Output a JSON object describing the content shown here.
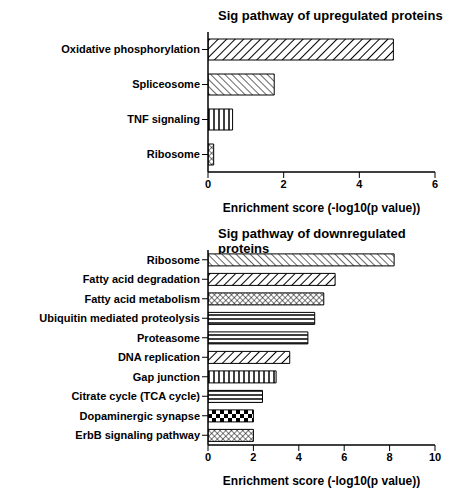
{
  "chart_data": [
    {
      "type": "bar",
      "orientation": "horizontal",
      "title": "Sig pathway of upregulated proteins",
      "x_label": "Enrichment score (-log10(p value))",
      "categories": [
        "Oxidative phosphorylation",
        "Spliceosome",
        "TNF signaling",
        "Ribosome"
      ],
      "values": [
        4.9,
        1.75,
        0.65,
        0.15
      ],
      "color": "#000000",
      "xlim": [
        0,
        6
      ],
      "xticks": [
        0,
        2,
        4,
        6
      ],
      "grid": false
    },
    {
      "type": "bar",
      "orientation": "horizontal",
      "title": "Sig pathway of downregulated proteins",
      "x_label": "Enrichment score (-log10(p value))",
      "categories": [
        "Ribosome",
        "Fatty acid degradation",
        "Fatty acid metabolism",
        "Ubiquitin mediated proteolysis",
        "Proteasome",
        "DNA replication",
        "Gap junction",
        "Citrate cycle (TCA cycle)",
        "Dopaminergic synapse",
        "ErbB signaling pathway"
      ],
      "values": [
        8.2,
        5.6,
        5.1,
        4.7,
        4.4,
        3.6,
        3.0,
        2.4,
        2.0,
        2.0
      ],
      "color": "#000000",
      "xlim": [
        0,
        10
      ],
      "xticks": [
        0,
        2,
        4,
        6,
        8,
        10
      ],
      "grid": false
    }
  ]
}
